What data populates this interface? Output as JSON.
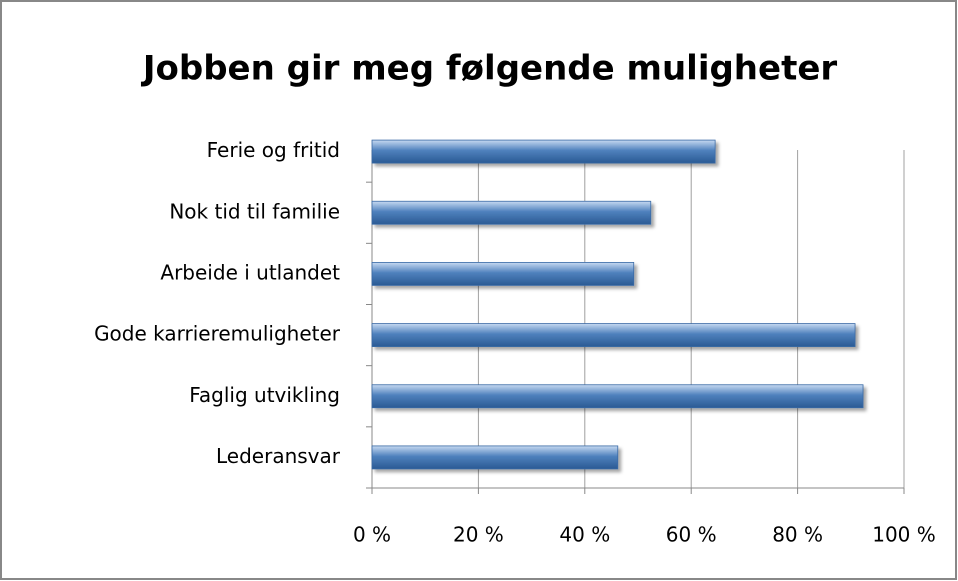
{
  "chart_data": {
    "type": "bar",
    "orientation": "horizontal",
    "title": "Jobben gir meg følgende muligheter",
    "categories": [
      "Ferie og fritid",
      "Nok tid til familie",
      "Arbeide i utlandet",
      "Gode karrieremuligheter",
      "Faglig utvikling",
      "Lederansvar"
    ],
    "values": [
      64.5,
      52.4,
      49.2,
      90.8,
      92.3,
      46.2
    ],
    "color": "#4f81bd",
    "xlim": [
      0,
      100
    ],
    "xticks": [
      {
        "value": 0,
        "label": "0 %"
      },
      {
        "value": 20,
        "label": "20 %"
      },
      {
        "value": 40,
        "label": "40 %"
      },
      {
        "value": 60,
        "label": "60 %"
      },
      {
        "value": 80,
        "label": "80 %"
      },
      {
        "value": 100,
        "label": "100 %"
      }
    ],
    "grid": true
  }
}
